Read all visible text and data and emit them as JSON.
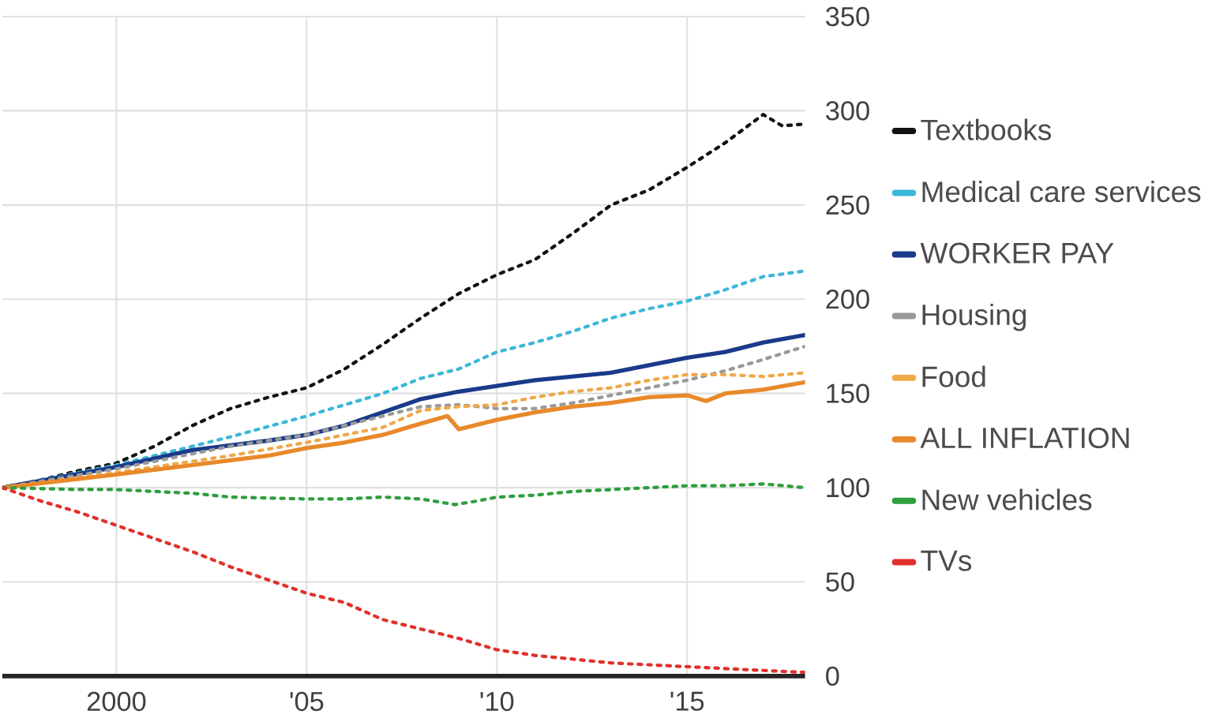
{
  "chart_data": {
    "type": "line",
    "xlim": [
      1997,
      2018.1
    ],
    "ylim": [
      0,
      350
    ],
    "xticks": [
      {
        "value": 2000,
        "label": "2000"
      },
      {
        "value": 2005,
        "label": "'05"
      },
      {
        "value": 2010,
        "label": "'10"
      },
      {
        "value": 2015,
        "label": "'15"
      }
    ],
    "yticks": [
      0,
      50,
      100,
      150,
      200,
      250,
      300,
      350
    ],
    "grid": true,
    "legend": "right",
    "marker": "none",
    "series": [
      {
        "name": "Textbooks",
        "color": "#111111",
        "line_style": "dotted",
        "x": [
          1997,
          1998,
          1999,
          2000,
          2001,
          2002,
          2003,
          2004,
          2005,
          2006,
          2007,
          2008,
          2009,
          2010,
          2011,
          2012,
          2013,
          2014,
          2015,
          2016,
          2017,
          2017.5,
          2018.1
        ],
        "values": [
          100,
          104,
          109,
          113,
          122,
          133,
          142,
          148,
          153,
          163,
          176,
          190,
          203,
          213,
          221,
          235,
          250,
          258,
          270,
          283,
          298,
          292,
          293
        ]
      },
      {
        "name": "Medical care services",
        "color": "#3bb8d8",
        "line_style": "dotted",
        "x": [
          1997,
          2000,
          2003,
          2005,
          2007,
          2008,
          2009,
          2010,
          2011,
          2012,
          2013,
          2014,
          2015,
          2016,
          2017,
          2018.1
        ],
        "values": [
          100,
          112,
          127,
          138,
          150,
          158,
          163,
          172,
          177,
          183,
          190,
          195,
          199,
          205,
          212,
          215
        ]
      },
      {
        "name": "WORKER PAY",
        "color": "#1a3a8a",
        "line_style": "solid",
        "x": [
          1997,
          2000,
          2002,
          2004,
          2005,
          2006,
          2007,
          2008,
          2009,
          2010,
          2011,
          2012,
          2013,
          2014,
          2015,
          2016,
          2017,
          2018.1
        ],
        "values": [
          100,
          111,
          120,
          125,
          128,
          133,
          140,
          147,
          151,
          154,
          157,
          159,
          161,
          165,
          169,
          172,
          177,
          181
        ]
      },
      {
        "name": "Housing",
        "color": "#999999",
        "line_style": "dotted",
        "x": [
          1997,
          2000,
          2003,
          2005,
          2007,
          2008,
          2009,
          2010,
          2011,
          2012,
          2013,
          2014,
          2015,
          2016,
          2017,
          2018.1
        ],
        "values": [
          100,
          110,
          122,
          128,
          138,
          143,
          144,
          142,
          142,
          145,
          149,
          153,
          157,
          162,
          168,
          175
        ]
      },
      {
        "name": "Food",
        "color": "#f0a848",
        "line_style": "dotted",
        "x": [
          1997,
          2000,
          2003,
          2005,
          2007,
          2008,
          2009,
          2010,
          2011,
          2012,
          2013,
          2014,
          2015,
          2016,
          2017,
          2018.1
        ],
        "values": [
          100,
          108,
          117,
          124,
          132,
          141,
          143,
          144,
          148,
          151,
          153,
          157,
          160,
          160,
          159,
          161
        ]
      },
      {
        "name": "ALL INFLATION",
        "color": "#e8892a",
        "line_style": "solid",
        "x": [
          1997,
          2000,
          2002,
          2004,
          2005,
          2006,
          2007,
          2008,
          2008.7,
          2009,
          2010,
          2011,
          2012,
          2013,
          2014,
          2015,
          2015.5,
          2016,
          2017,
          2018.1
        ],
        "values": [
          100,
          107,
          112,
          117,
          121,
          124,
          128,
          134,
          138,
          131,
          136,
          140,
          143,
          145,
          148,
          149,
          146,
          150,
          152,
          156
        ]
      },
      {
        "name": "New vehicles",
        "color": "#2e9e3e",
        "line_style": "dotted",
        "x": [
          1997,
          1999,
          2000,
          2002,
          2003,
          2005,
          2006,
          2007,
          2008,
          2008.9,
          2009.5,
          2010,
          2011,
          2012,
          2013,
          2014,
          2015,
          2016,
          2017,
          2018.1
        ],
        "values": [
          100,
          99,
          99,
          97,
          95,
          94,
          94,
          95,
          94,
          91,
          93,
          95,
          96,
          98,
          99,
          100,
          101,
          101,
          102,
          100
        ]
      },
      {
        "name": "TVs",
        "color": "#e0302a",
        "line_style": "dotted",
        "x": [
          1997,
          1998,
          1999,
          2000,
          2001,
          2002,
          2003,
          2004,
          2005,
          2006,
          2007,
          2008,
          2009,
          2010,
          2011,
          2012,
          2013,
          2014,
          2015,
          2016,
          2017,
          2018.1
        ],
        "values": [
          100,
          93,
          87,
          80,
          73,
          66,
          58,
          51,
          44,
          39,
          30,
          25,
          20,
          14,
          11,
          9,
          7,
          6,
          5,
          4,
          3,
          2
        ]
      }
    ]
  }
}
